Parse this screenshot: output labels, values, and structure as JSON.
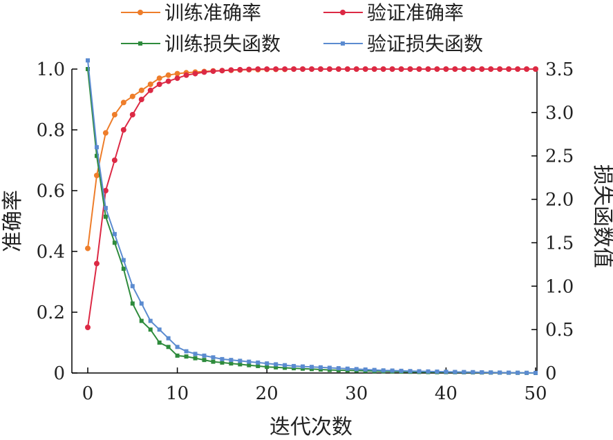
{
  "chart_data": {
    "type": "line",
    "xlabel": "迭代次数",
    "ylabel_left": "准确率",
    "ylabel_right": "损失函数值",
    "xlim": [
      0,
      50
    ],
    "ylim_left": [
      0,
      1.0
    ],
    "ylim_right": [
      0,
      3.5
    ],
    "x_ticks": [
      "0",
      "10",
      "20",
      "30",
      "40",
      "50"
    ],
    "y_left_ticks": [
      "0",
      "0.2",
      "0.4",
      "0.6",
      "0.8",
      "1.0"
    ],
    "y_right_ticks": [
      "0",
      "0.5",
      "1.0",
      "1.5",
      "2.0",
      "2.5",
      "3.0",
      "3.5"
    ],
    "grid": false,
    "legend_position": "top",
    "series": [
      {
        "name": "训练准确率",
        "axis": "left",
        "color": "#ee7d2a",
        "marker": "circle",
        "x": [
          0,
          1,
          2,
          3,
          4,
          5,
          6,
          7,
          8,
          9,
          10,
          11,
          12,
          13,
          14,
          15,
          16,
          17,
          18,
          19,
          20,
          21,
          22,
          23,
          24,
          25,
          26,
          27,
          28,
          29,
          30,
          31,
          32,
          33,
          34,
          35,
          36,
          37,
          38,
          39,
          40,
          41,
          42,
          43,
          44,
          45,
          46,
          47,
          48,
          49,
          50
        ],
        "values": [
          0.41,
          0.65,
          0.79,
          0.85,
          0.89,
          0.91,
          0.93,
          0.95,
          0.97,
          0.98,
          0.985,
          0.988,
          0.99,
          0.992,
          0.994,
          0.995,
          0.996,
          0.997,
          0.998,
          0.998,
          0.999,
          0.999,
          0.999,
          1.0,
          1.0,
          1.0,
          1.0,
          1.0,
          1.0,
          1.0,
          1.0,
          1.0,
          1.0,
          1.0,
          1.0,
          1.0,
          1.0,
          1.0,
          1.0,
          1.0,
          1.0,
          1.0,
          1.0,
          1.0,
          1.0,
          1.0,
          1.0,
          1.0,
          1.0,
          1.0,
          1.0
        ]
      },
      {
        "name": "验证准确率",
        "axis": "left",
        "color": "#dc2944",
        "marker": "circle",
        "x": [
          0,
          1,
          2,
          3,
          4,
          5,
          6,
          7,
          8,
          9,
          10,
          11,
          12,
          13,
          14,
          15,
          16,
          17,
          18,
          19,
          20,
          21,
          22,
          23,
          24,
          25,
          26,
          27,
          28,
          29,
          30,
          31,
          32,
          33,
          34,
          35,
          36,
          37,
          38,
          39,
          40,
          41,
          42,
          43,
          44,
          45,
          46,
          47,
          48,
          49,
          50
        ],
        "values": [
          0.15,
          0.36,
          0.6,
          0.7,
          0.8,
          0.85,
          0.9,
          0.93,
          0.95,
          0.96,
          0.97,
          0.98,
          0.985,
          0.99,
          0.993,
          0.995,
          0.997,
          0.998,
          0.999,
          1.0,
          1.0,
          1.0,
          1.0,
          1.0,
          1.0,
          1.0,
          1.0,
          1.0,
          1.0,
          1.0,
          1.0,
          1.0,
          1.0,
          1.0,
          1.0,
          1.0,
          1.0,
          1.0,
          1.0,
          1.0,
          1.0,
          1.0,
          1.0,
          1.0,
          1.0,
          1.0,
          1.0,
          1.0,
          1.0,
          1.0,
          1.0
        ]
      },
      {
        "name": "训练损失函数",
        "axis": "right",
        "color": "#2e8b3c",
        "marker": "square",
        "x": [
          0,
          1,
          2,
          3,
          4,
          5,
          6,
          7,
          8,
          9,
          10,
          11,
          12,
          13,
          14,
          15,
          16,
          17,
          18,
          19,
          20,
          21,
          22,
          23,
          24,
          25,
          26,
          27,
          28,
          29,
          30,
          31,
          32,
          33,
          34,
          35,
          36,
          37,
          38,
          39,
          40,
          41,
          42,
          43,
          44,
          45,
          46,
          47,
          48,
          49,
          50
        ],
        "values": [
          3.5,
          2.5,
          1.8,
          1.5,
          1.2,
          0.8,
          0.6,
          0.5,
          0.35,
          0.3,
          0.2,
          0.19,
          0.17,
          0.15,
          0.13,
          0.12,
          0.11,
          0.1,
          0.09,
          0.08,
          0.07,
          0.065,
          0.06,
          0.055,
          0.05,
          0.045,
          0.04,
          0.035,
          0.032,
          0.03,
          0.028,
          0.025,
          0.022,
          0.02,
          0.018,
          0.016,
          0.014,
          0.012,
          0.011,
          0.01,
          0.01,
          0.009,
          0.008,
          0.007,
          0.006,
          0.005,
          0.004,
          0.003,
          0.002,
          0.001,
          0.0
        ]
      },
      {
        "name": "验证损失函数",
        "axis": "right",
        "color": "#5b8bd0",
        "marker": "square",
        "x": [
          0,
          1,
          2,
          3,
          4,
          5,
          6,
          7,
          8,
          9,
          10,
          11,
          12,
          13,
          14,
          15,
          16,
          17,
          18,
          19,
          20,
          21,
          22,
          23,
          24,
          25,
          26,
          27,
          28,
          29,
          30,
          31,
          32,
          33,
          34,
          35,
          36,
          37,
          38,
          39,
          40,
          41,
          42,
          43,
          44,
          45,
          46,
          47,
          48,
          49,
          50
        ],
        "values": [
          3.6,
          2.6,
          1.9,
          1.6,
          1.3,
          1.0,
          0.8,
          0.6,
          0.5,
          0.4,
          0.3,
          0.25,
          0.22,
          0.2,
          0.18,
          0.16,
          0.15,
          0.14,
          0.13,
          0.12,
          0.11,
          0.1,
          0.09,
          0.08,
          0.075,
          0.07,
          0.065,
          0.06,
          0.055,
          0.05,
          0.045,
          0.04,
          0.035,
          0.03,
          0.028,
          0.025,
          0.022,
          0.02,
          0.018,
          0.016,
          0.014,
          0.012,
          0.011,
          0.01,
          0.008,
          0.006,
          0.005,
          0.004,
          0.003,
          0.002,
          0.001
        ]
      }
    ]
  }
}
